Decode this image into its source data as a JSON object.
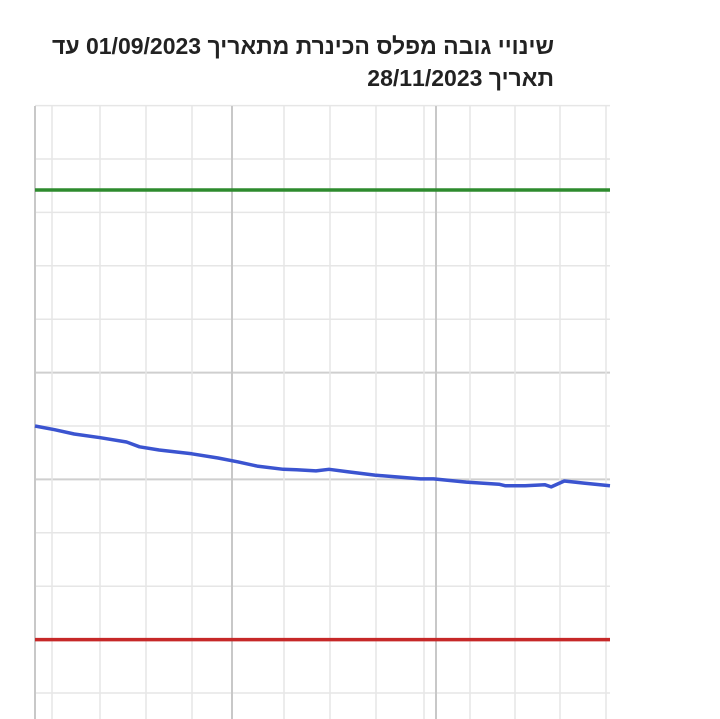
{
  "chart_data": {
    "type": "line",
    "title_line1": "שינויי גובה מפלס הכינרת מתאריך 01/09/2023 עד",
    "title_line2": "תאריך 28/11/2023",
    "xlabel": "",
    "ylabel": "",
    "grid": true,
    "legend": "none",
    "xlim": [
      "01/09/2023",
      "28/11/2023"
    ],
    "series": [
      {
        "color": "#3b54d0",
        "points": [
          [
            "01/09/2023",
            5.0
          ],
          [
            "04/09/2023",
            4.93
          ],
          [
            "07/09/2023",
            4.85
          ],
          [
            "11/09/2023",
            4.78
          ],
          [
            "15/09/2023",
            4.7
          ],
          [
            "17/09/2023",
            4.61
          ],
          [
            "20/09/2023",
            4.55
          ],
          [
            "25/09/2023",
            4.48
          ],
          [
            "29/09/2023",
            4.4
          ],
          [
            "02/10/2023",
            4.33
          ],
          [
            "05/10/2023",
            4.25
          ],
          [
            "09/10/2023",
            4.19
          ],
          [
            "11/10/2023",
            4.18
          ],
          [
            "14/10/2023",
            4.16
          ],
          [
            "16/10/2023",
            4.19
          ],
          [
            "19/10/2023",
            4.14
          ],
          [
            "23/10/2023",
            4.08
          ],
          [
            "27/10/2023",
            4.04
          ],
          [
            "30/10/2023",
            4.01
          ],
          [
            "01/11/2023",
            4.01
          ],
          [
            "06/11/2023",
            3.95
          ],
          [
            "11/11/2023",
            3.91
          ],
          [
            "12/11/2023",
            3.88
          ],
          [
            "15/11/2023",
            3.88
          ],
          [
            "18/11/2023",
            3.9
          ],
          [
            "19/11/2023",
            3.86
          ],
          [
            "21/11/2023",
            3.97
          ],
          [
            "24/11/2023",
            3.93
          ],
          [
            "28/11/2023",
            3.88
          ]
        ]
      },
      {
        "color": "#2e8b2e",
        "points": [
          [
            "01/09/2023",
            9.42
          ],
          [
            "28/11/2023",
            9.42
          ]
        ]
      },
      {
        "color": "#c62828",
        "points": [
          [
            "01/09/2023",
            1.0
          ],
          [
            "28/11/2023",
            1.0
          ]
        ]
      }
    ]
  }
}
